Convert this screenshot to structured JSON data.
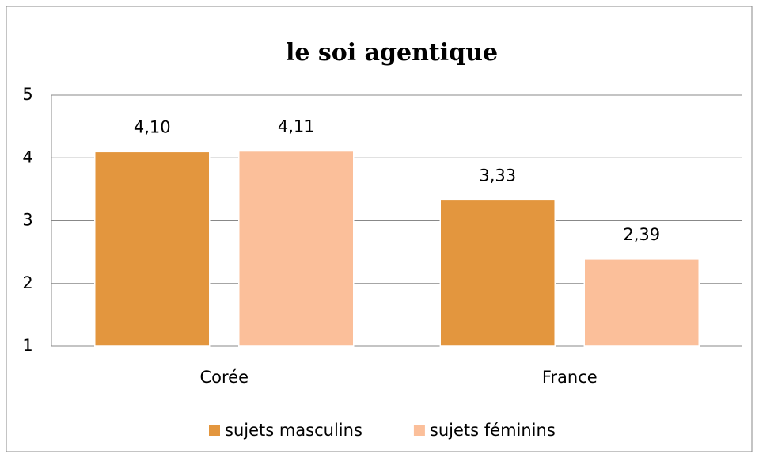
{
  "chart_data": {
    "type": "bar",
    "title": "le soi agentique",
    "categories": [
      "Corée",
      "France"
    ],
    "series": [
      {
        "name": "sujets masculins",
        "color": "#e3963e",
        "values": [
          4.1,
          3.33
        ],
        "value_labels": [
          "4,10",
          "3,33"
        ]
      },
      {
        "name": "sujets féminins",
        "color": "#fbbf9a",
        "values": [
          4.11,
          2.39
        ],
        "value_labels": [
          "4,11",
          "2,39"
        ]
      }
    ],
    "ylim": [
      1,
      5
    ],
    "yticks": [
      1,
      2,
      3,
      4,
      5
    ],
    "grid": true,
    "legend": "bottom"
  }
}
